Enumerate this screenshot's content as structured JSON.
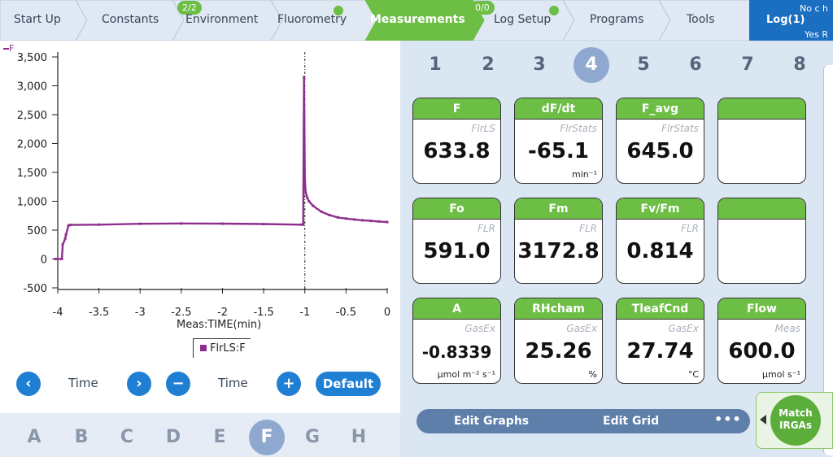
{
  "tabs": [
    {
      "label": "Start Up"
    },
    {
      "label": "Constants"
    },
    {
      "label": "Environment",
      "badge": "2/2"
    },
    {
      "label": "Fluorometry",
      "status": "ok"
    },
    {
      "label": "Measurements",
      "active": true
    },
    {
      "label": "Log Setup",
      "badge": "0/0",
      "status": "ok"
    },
    {
      "label": "Programs"
    },
    {
      "label": "Tools"
    }
  ],
  "log": {
    "title": "Log(1)",
    "line1": "No c h",
    "line2": "Yes R"
  },
  "graph": {
    "legend_label": "FlrLS:F",
    "series_tag": "F",
    "x_caption": "Meas:TIME(min)",
    "controls": {
      "prev": "‹",
      "left_label": "Time",
      "next": "›",
      "minus": "−",
      "right_label": "Time",
      "plus": "+",
      "default": "Default"
    }
  },
  "chart_data": {
    "type": "line",
    "xlabel": "Meas:TIME(min)",
    "ylabel": "",
    "xlim": [
      -4,
      0
    ],
    "ylim": [
      -500,
      3500
    ],
    "x_ticks": [
      "-4",
      "-3.5",
      "-3",
      "-2.5",
      "-2",
      "-1.5",
      "-1",
      "-0.5",
      "0"
    ],
    "y_ticks": [
      "3,500",
      "3,000",
      "2,500",
      "2,000",
      "1,500",
      "1,000",
      "500",
      "0",
      "-500"
    ],
    "grid": true,
    "marker_line_x": -1,
    "series": [
      {
        "name": "FlrLS:F",
        "x": [
          -4.03,
          -3.95,
          -3.94,
          -3.91,
          -3.9,
          -3.87,
          -3.85,
          -3.5,
          -3.0,
          -2.5,
          -2.0,
          -1.5,
          -1.04,
          -1.02,
          -1.01,
          -1.0,
          -0.99,
          -0.97,
          -0.95,
          -0.9,
          -0.8,
          -0.7,
          -0.6,
          -0.5,
          -0.4,
          -0.3,
          -0.2,
          -0.1,
          0.0
        ],
        "values": [
          0,
          0,
          250,
          350,
          420,
          580,
          590,
          595,
          610,
          615,
          612,
          605,
          595,
          595,
          3150,
          1350,
          1150,
          1060,
          1000,
          920,
          820,
          760,
          720,
          700,
          685,
          670,
          660,
          650,
          640
        ]
      }
    ],
    "series_color": "#8e2f8e"
  },
  "letters": [
    "A",
    "B",
    "C",
    "D",
    "E",
    "F",
    "G",
    "H"
  ],
  "selected_letter": "F",
  "numbers": [
    "1",
    "2",
    "3",
    "4",
    "5",
    "6",
    "7",
    "8"
  ],
  "selected_number": "4",
  "tiles": [
    {
      "head": "F",
      "src": "FlrLS",
      "value": "633.8",
      "unit": ""
    },
    {
      "head": "dF/dt",
      "src": "FlrStats",
      "value": "-65.1",
      "unit": "min⁻¹"
    },
    {
      "head": "F_avg",
      "src": "FlrStats",
      "value": "645.0",
      "unit": ""
    },
    {
      "head": "",
      "src": "",
      "value": "",
      "unit": ""
    },
    {
      "head": "Fo",
      "src": "FLR",
      "value": "591.0",
      "unit": ""
    },
    {
      "head": "Fm",
      "src": "FLR",
      "value": "3172.8",
      "unit": ""
    },
    {
      "head": "Fv/Fm",
      "src": "FLR",
      "value": "0.814",
      "unit": ""
    },
    {
      "head": "",
      "src": "",
      "value": "",
      "unit": ""
    },
    {
      "head": "A",
      "src": "GasEx",
      "value": "-0.8339",
      "unit": "µmol m⁻² s⁻¹"
    },
    {
      "head": "RHcham",
      "src": "GasEx",
      "value": "25.26",
      "unit": "%"
    },
    {
      "head": "TleafCnd",
      "src": "GasEx",
      "value": "27.74",
      "unit": "°C"
    },
    {
      "head": "Flow",
      "src": "Meas",
      "value": "600.0",
      "unit": "µmol s⁻¹"
    }
  ],
  "toolbar": {
    "edit_graphs": "Edit Graphs",
    "edit_grid": "Edit Grid",
    "more": "•••"
  },
  "match": {
    "line1": "Match",
    "line2": "IRGAs"
  },
  "colors": {
    "accent": "#1f7fd3",
    "active_tab": "#6dbe45",
    "series": "#8e2f8e",
    "log_panel": "#1b6fc0"
  }
}
